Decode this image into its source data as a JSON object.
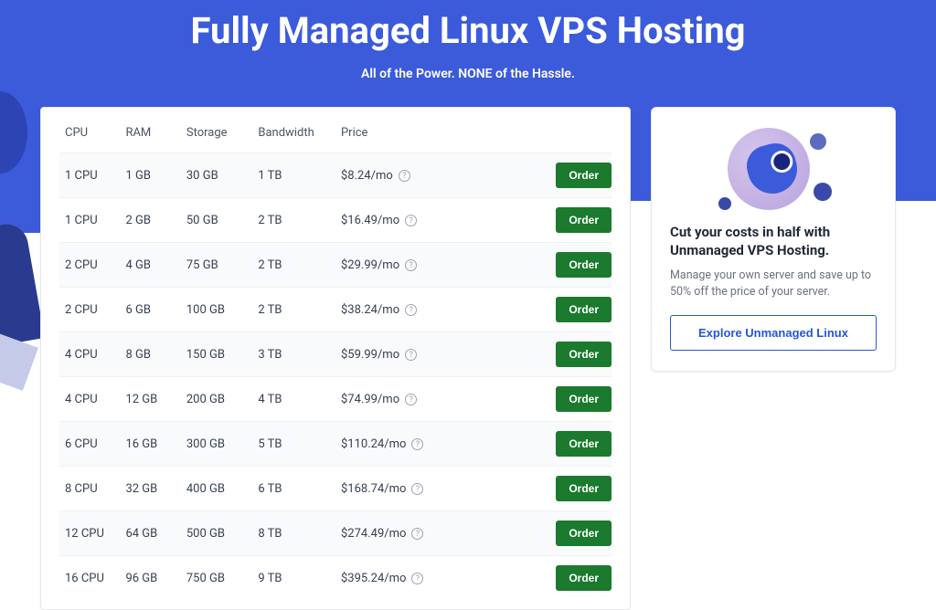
{
  "hero": {
    "title": "Fully Managed Linux VPS Hosting",
    "subtitle": "All of the Power. NONE of the Hassle.",
    "bg_color": "#3b5bdb",
    "title_color": "#ffffff",
    "title_fontsize": 40,
    "subtitle_fontsize": 14
  },
  "pricing": {
    "columns": [
      "CPU",
      "RAM",
      "Storage",
      "Bandwidth",
      "Price"
    ],
    "order_label": "Order",
    "order_btn_bg": "#1b7a2d",
    "order_btn_color": "#ffffff",
    "row_alt_bg": "#f9fafb",
    "header_color": "#4b5563",
    "cell_color": "#374151",
    "info_icon_glyph": "?",
    "rows": [
      {
        "cpu": "1 CPU",
        "ram": "1 GB",
        "storage": "30 GB",
        "bandwidth": "1 TB",
        "price": "$8.24/mo"
      },
      {
        "cpu": "1 CPU",
        "ram": "2 GB",
        "storage": "50 GB",
        "bandwidth": "2 TB",
        "price": "$16.49/mo"
      },
      {
        "cpu": "2 CPU",
        "ram": "4 GB",
        "storage": "75 GB",
        "bandwidth": "2 TB",
        "price": "$29.99/mo"
      },
      {
        "cpu": "2 CPU",
        "ram": "6 GB",
        "storage": "100 GB",
        "bandwidth": "2 TB",
        "price": "$38.24/mo"
      },
      {
        "cpu": "4 CPU",
        "ram": "8 GB",
        "storage": "150 GB",
        "bandwidth": "3 TB",
        "price": "$59.99/mo"
      },
      {
        "cpu": "4 CPU",
        "ram": "12 GB",
        "storage": "200 GB",
        "bandwidth": "4 TB",
        "price": "$74.99/mo"
      },
      {
        "cpu": "6 CPU",
        "ram": "16 GB",
        "storage": "300 GB",
        "bandwidth": "5 TB",
        "price": "$110.24/mo"
      },
      {
        "cpu": "8 CPU",
        "ram": "32 GB",
        "storage": "400 GB",
        "bandwidth": "6 TB",
        "price": "$168.74/mo"
      },
      {
        "cpu": "12 CPU",
        "ram": "64 GB",
        "storage": "500 GB",
        "bandwidth": "8 TB",
        "price": "$274.49/mo"
      },
      {
        "cpu": "16 CPU",
        "ram": "96 GB",
        "storage": "750 GB",
        "bandwidth": "9 TB",
        "price": "$395.24/mo"
      }
    ]
  },
  "promo": {
    "title": "Cut your costs in half with Unmanaged VPS Hosting.",
    "body": "Manage your own server and save up to 50% off the price of your server.",
    "cta_label": "Explore Unmanaged Linux",
    "cta_border": "#2457d6",
    "cta_color": "#2457d6",
    "illustration_colors": {
      "planet": "#b8a3dd",
      "rocket": "#3b5bdb",
      "window": "#1a237e",
      "moons": "#3949ab"
    }
  },
  "card_border": "#e5e7eb",
  "card_bg": "#ffffff"
}
